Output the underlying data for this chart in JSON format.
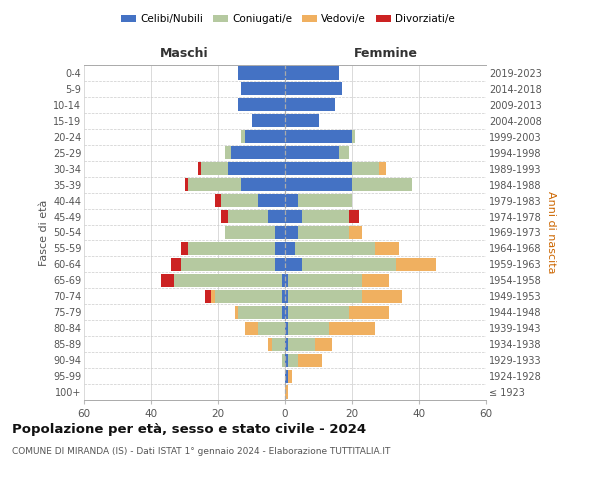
{
  "age_groups": [
    "100+",
    "95-99",
    "90-94",
    "85-89",
    "80-84",
    "75-79",
    "70-74",
    "65-69",
    "60-64",
    "55-59",
    "50-54",
    "45-49",
    "40-44",
    "35-39",
    "30-34",
    "25-29",
    "20-24",
    "15-19",
    "10-14",
    "5-9",
    "0-4"
  ],
  "birth_years": [
    "≤ 1923",
    "1924-1928",
    "1929-1933",
    "1934-1938",
    "1939-1943",
    "1944-1948",
    "1949-1953",
    "1954-1958",
    "1959-1963",
    "1964-1968",
    "1969-1973",
    "1974-1978",
    "1979-1983",
    "1984-1988",
    "1989-1993",
    "1994-1998",
    "1999-2003",
    "2004-2008",
    "2009-2013",
    "2014-2018",
    "2019-2023"
  ],
  "colors": {
    "celibi": "#4472c4",
    "coniugati": "#b5c9a0",
    "vedovi": "#f0b060",
    "divorziati": "#cc2222"
  },
  "maschi": {
    "celibi": [
      0,
      0,
      0,
      0,
      0,
      1,
      1,
      1,
      3,
      3,
      3,
      5,
      8,
      13,
      17,
      16,
      12,
      10,
      14,
      13,
      14
    ],
    "coniugati": [
      0,
      0,
      1,
      4,
      8,
      13,
      20,
      32,
      28,
      26,
      15,
      12,
      11,
      16,
      8,
      2,
      1,
      0,
      0,
      0,
      0
    ],
    "vedovi": [
      0,
      0,
      0,
      1,
      4,
      1,
      1,
      0,
      0,
      0,
      0,
      0,
      0,
      0,
      0,
      0,
      0,
      0,
      0,
      0,
      0
    ],
    "divorziati": [
      0,
      0,
      0,
      0,
      0,
      0,
      2,
      4,
      3,
      2,
      0,
      2,
      2,
      1,
      1,
      0,
      0,
      0,
      0,
      0,
      0
    ]
  },
  "femmine": {
    "celibi": [
      0,
      1,
      1,
      1,
      1,
      1,
      1,
      1,
      5,
      3,
      4,
      5,
      4,
      20,
      20,
      16,
      20,
      10,
      15,
      17,
      16
    ],
    "coniugati": [
      0,
      0,
      3,
      8,
      12,
      18,
      22,
      22,
      28,
      24,
      15,
      14,
      16,
      18,
      8,
      3,
      1,
      0,
      0,
      0,
      0
    ],
    "vedovi": [
      1,
      1,
      7,
      5,
      14,
      12,
      12,
      8,
      12,
      7,
      4,
      0,
      0,
      0,
      2,
      0,
      0,
      0,
      0,
      0,
      0
    ],
    "divorziati": [
      0,
      0,
      0,
      0,
      0,
      0,
      0,
      0,
      0,
      0,
      0,
      3,
      0,
      0,
      0,
      0,
      0,
      0,
      0,
      0,
      0
    ]
  },
  "xlim": 60,
  "title": "Popolazione per età, sesso e stato civile - 2024",
  "subtitle": "COMUNE DI MIRANDA (IS) - Dati ISTAT 1° gennaio 2024 - Elaborazione TUTTITALIA.IT",
  "ylabel_left": "Fasce di età",
  "ylabel_right": "Anni di nascita",
  "legend_labels": [
    "Celibi/Nubili",
    "Coniugati/e",
    "Vedovi/e",
    "Divorziati/e"
  ],
  "maschi_label": "Maschi",
  "femmine_label": "Femmine",
  "bg_color": "#ffffff",
  "grid_color": "#cccccc",
  "text_color": "#555555"
}
